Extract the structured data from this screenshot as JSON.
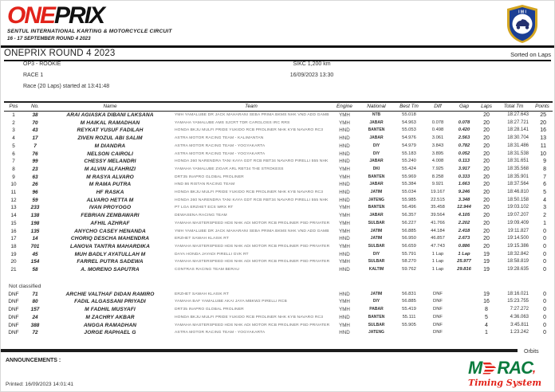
{
  "masthead": {
    "logo_one": "ONE",
    "logo_prix": "PRIX",
    "subtitle1": "SENTUL INTERNATIONAL KARTING & MOTORCYCLE CIRCUIT",
    "subtitle2": "16 - 17 SEPTEMBER ROUND 4 2023"
  },
  "header": {
    "title": "ONEPRIX ROUND 4 2023",
    "sorted_label": "Sorted on Laps"
  },
  "info": {
    "class_name": "OP3 - ROOKIE",
    "race_label": "RACE 1",
    "track": "SIKC 1,200 km",
    "datetime": "16/09/2023 13:30",
    "race_start": "Race (20 Laps) started at 13:41:48"
  },
  "table": {
    "columns": [
      "Pos",
      "No.",
      "Name",
      "Team",
      "Engine",
      "National",
      "Best Tm",
      "Diff",
      "Gap",
      "Laps",
      "Total Tm",
      "Points"
    ],
    "rows": [
      [
        "1",
        "38",
        "ARAI AGIASKA DIBANI LAKSANA",
        "YMH YAMALUBE DR JACK MAHARANI SEBA PRIMA BKMS NHK VND ADD GAMBIR ZYROP47",
        "YMH",
        "NTB",
        "55.018",
        "",
        "",
        "20",
        "18:27.643",
        "25"
      ],
      [
        "2",
        "70",
        "M HAIKAL RAMADHAN",
        "YAMAHA YAMALUBE AMS SJCRT TDR CARGLOSS IRC RRS",
        "YMH",
        "JABAR",
        "54.963",
        "0.078",
        "0.078",
        "20",
        "18:27.721",
        "20"
      ],
      [
        "3",
        "43",
        "REYKAT YUSUF FADILAH",
        "HONDA BKJU MULFI PRIDE YUKIDO RCB PROLINER NHK KYB NAVARO RC3",
        "HND",
        "BANTEN",
        "55.053",
        "0.498",
        "0.420",
        "20",
        "18:28.141",
        "16"
      ],
      [
        "4",
        "17",
        "ZIVEN ROZUL ABI SALIM",
        "ASTRA MOTOR RACING TEAM - KALIMANTAN",
        "HND",
        "JABAR",
        "54.976",
        "3.061",
        "2.563",
        "20",
        "18:30.704",
        "13"
      ],
      [
        "5",
        "7",
        "M DIANDRA",
        "ASTRA MOTOR RACING TEAM - YOGYAKARTA",
        "HND",
        "DIY",
        "54.979",
        "3.843",
        "0.782",
        "20",
        "18:31.486",
        "11"
      ],
      [
        "6",
        "76",
        "NELSON CAIROLI",
        "ASTRA MOTOR RACING TEAM - YOGYAKARTA",
        "HND",
        "DIY",
        "55.183",
        "3.895",
        "0.052",
        "20",
        "18:31.538",
        "10"
      ],
      [
        "7",
        "99",
        "CHESSY MELANDRI",
        "HONDA 260 NARENDRA TANI KAYA GDT RCB RBT34 NAVARO PIRELLI 555 NHK UMA RACING NGK",
        "HND",
        "JABAR",
        "55.240",
        "4.008",
        "0.113",
        "20",
        "18:31.651",
        "9"
      ],
      [
        "8",
        "23",
        "M ALVIN ALFAHRIZI",
        "YAMAHA YAMALUBE ZIGAR ARL RBT34 THE STROKESS",
        "YMH",
        "DKI",
        "55.424",
        "7.925",
        "3.917",
        "20",
        "18:35.568",
        "8"
      ],
      [
        "9",
        "63",
        "M RASYA ALVARO",
        "DRT35 INAPRO GLOBAL PROLINER",
        "YMH",
        "BANTEN",
        "55.969",
        "8.258",
        "0.333",
        "20",
        "18:35.901",
        "7"
      ],
      [
        "10",
        "26",
        "M RAMA PUTRA",
        "HND 86 RISTAN RACING TEAM",
        "HND",
        "JABAR",
        "55.384",
        "9.921",
        "1.663",
        "20",
        "18:37.564",
        "6"
      ],
      [
        "11",
        "96",
        "HF RASKA",
        "HONDA BKJU MULFI PRIDE YUKIDO RCB PROLINER NHK KYB NAVARO RC3",
        "HND",
        "JATIM",
        "55.034",
        "19.167",
        "9.246",
        "20",
        "18:46.810",
        "5"
      ],
      [
        "12",
        "59",
        "ALVARO HETTA M",
        "HONDA 260 NARENDRA TANI KAYA GDT RCB RBT34 NAVARO PIRELLI 555 NHK UMA RACING NGK",
        "HND",
        "JATENG",
        "55.985",
        "22.515",
        "3.348",
        "20",
        "18:50.158",
        "4"
      ],
      [
        "13",
        "233",
        "IVAN PROYOGO",
        "PT LGA ERZHET ECS WRX RT",
        "YMH",
        "BANTEN",
        "56.496",
        "35.458",
        "12.944",
        "20",
        "19:03.102",
        "3"
      ],
      [
        "14",
        "138",
        "FEBRIAN ZEMBAWARI",
        "DEWASENA RACING TEAM",
        "YMH",
        "JABAR",
        "56.357",
        "39.564",
        "4.105",
        "20",
        "19:07.207",
        "2"
      ],
      [
        "15",
        "198",
        "AFHIL AZHRAF",
        "YAMAHA MASTERSPEED HDS NHK ADI MOTOR RCB PROLINER PSD PRIVATER",
        "YMH",
        "SULBAR",
        "56.227",
        "41.766",
        "2.202",
        "20",
        "19:09.409",
        "1"
      ],
      [
        "16",
        "135",
        "ANYCHO CASEY HENANDA",
        "YMH YAMALUBE DR JACK MAHARANI SEBA PRIMA BKMS NHK VND ADD GAMBIR ZYROP47",
        "YMH",
        "JATIM",
        "56.885",
        "44.184",
        "2.418",
        "20",
        "19:11.827",
        "0"
      ],
      [
        "17",
        "14",
        "CHORIQ DESCHA MAHENDRA",
        "ERZHET SAWAH KLASIK RT",
        "HND",
        "JATIM",
        "56.950",
        "46.857",
        "2.673",
        "20",
        "19:14.500",
        "0"
      ],
      [
        "18",
        "701",
        "LANOVA TANTRA MAHARDIKA",
        "YAMAHA MASTERSPEED HDS NHK ADI MOTOR RCB PROLINER PSD PRIVATER",
        "YMH",
        "SULBAR",
        "56.659",
        "47.743",
        "0.886",
        "20",
        "19:15.386",
        "0"
      ],
      [
        "19",
        "45",
        "MUH BADLY AYATULLAH M",
        "DAYA HONDA JAYADI PIRELLI GVK RT",
        "HND",
        "DIY",
        "55.791",
        "1 Lap",
        "1 Lap",
        "19",
        "18:32.842",
        "0"
      ],
      [
        "20",
        "154",
        "FARREL PUTRA SADEWA",
        "YAMAHA MASTERSPEED HDS NHK ADI MOTOR RCB PROLINER PSD PRIVATER",
        "YMH",
        "SULBAR",
        "58.270",
        "1 Lap",
        "25.977",
        "19",
        "18:58.819",
        "0"
      ],
      [
        "21",
        "58",
        "A. MORENO SAPUTRA",
        "CONTRAS RACING TEAM BERAU",
        "HND",
        "KALTIM",
        "59.762",
        "1 Lap",
        "29.816",
        "19",
        "19:28.635",
        "0"
      ]
    ],
    "not_classified_label": "Not classified",
    "dnf_rows": [
      [
        "DNF",
        "71",
        "ARCHIE VALTHAF DIDAN RAMIRO",
        "ERZHET SAWAH KLASIK RT",
        "HND",
        "JATIM",
        "56.831",
        "DNF",
        "",
        "19",
        "18:16.021",
        "0"
      ],
      [
        "DNF",
        "80",
        "FADIL ALGASSANI PRIYADI",
        "YAMAHA BAF YAMALUBE AKAI JAYA MBKW2 PIRELLI RCB",
        "YMH",
        "DIY",
        "56.885",
        "DNF",
        "",
        "16",
        "15:23.755",
        "0"
      ],
      [
        "DNF",
        "157",
        "M FADHIL MUSYAFI",
        "DRT35 INAPRO GLOBAL PROLINER",
        "YMH",
        "PABAR",
        "55.419",
        "DNF",
        "",
        "8",
        "7:27.272",
        "0"
      ],
      [
        "DNF",
        "24",
        "M ZACHRY AKBAR",
        "HONDA BKJU MULFI PRIDE YUKIDO RCB PROLINER NHK KYB NAVARO RC3",
        "HND",
        "BANTEN",
        "55.111",
        "DNF",
        "",
        "5",
        "4:36.063",
        "0"
      ],
      [
        "DNF",
        "388",
        "ANGGA RAMADHAN",
        "YAMAHA MASTERSPEED HDS NHK ADI MOTOR RCB PROLINER PSD PRIVATER",
        "YMH",
        "SULBAR",
        "55.905",
        "DNF",
        "",
        "4",
        "3:45.811",
        "0"
      ],
      [
        "DNF",
        "72",
        "JORGE RAPHAEL G",
        "ASTRA MOTOR RACING TEAM - YOGYAKARTA",
        "HND",
        "JATENG",
        "",
        "DNF",
        "",
        "1",
        "1:23.242",
        "0"
      ]
    ]
  },
  "footer": {
    "orbits": "Orbits",
    "announcements": "ANNOUNCEMENTS :",
    "printed": "Printed: 16/09/2023 14:01:41",
    "morac_m": "M",
    "morac_rac": "RAC",
    "morac_comma": ",",
    "morac_tagline": "Timing System"
  },
  "colors": {
    "brand_red": "#e2231a",
    "morac_green": "#0b7b3e",
    "badge_blue": "#1b3f94",
    "badge_gold": "#d4a520"
  }
}
